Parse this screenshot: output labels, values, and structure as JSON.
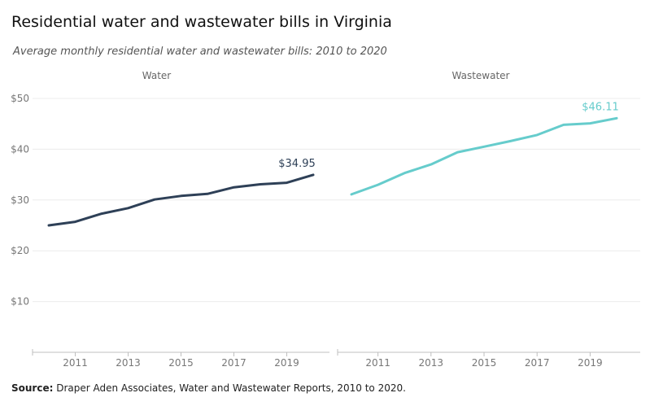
{
  "title": "Residential water and wastewater bills in Virginia",
  "subtitle": "Average monthly residential water and wastewater bills: 2010 to 2020",
  "source": {
    "label": "Source:",
    "text": "Draper Aden Associates, Water and Wastewater Reports, 2010 to 2020."
  },
  "chart_data": {
    "type": "line",
    "ylim": [
      0,
      50
    ],
    "yticks": [
      10,
      20,
      30,
      40,
      50
    ],
    "ytick_labels": [
      "$10",
      "$20",
      "$30",
      "$40",
      "$50"
    ],
    "xticks": [
      2011,
      2013,
      2015,
      2017,
      2019
    ],
    "xtick_labels": [
      "2011",
      "2013",
      "2015",
      "2017",
      "2019"
    ],
    "grid": true,
    "panels": [
      {
        "name": "Water",
        "color": "#2e4057",
        "x": [
          2010,
          2011,
          2012,
          2013,
          2014,
          2015,
          2016,
          2017,
          2018,
          2019,
          2020
        ],
        "values": [
          25.0,
          25.7,
          27.3,
          28.4,
          30.1,
          30.8,
          31.2,
          32.5,
          33.1,
          33.4,
          34.95
        ],
        "end_label": "$34.95"
      },
      {
        "name": "Wastewater",
        "color": "#66cccc",
        "x": [
          2010,
          2011,
          2012,
          2013,
          2014,
          2015,
          2016,
          2017,
          2018,
          2019,
          2020
        ],
        "values": [
          31.1,
          33.0,
          35.3,
          37.0,
          39.4,
          40.5,
          41.6,
          42.8,
          44.8,
          45.1,
          46.11
        ],
        "end_label": "$46.11"
      }
    ]
  }
}
